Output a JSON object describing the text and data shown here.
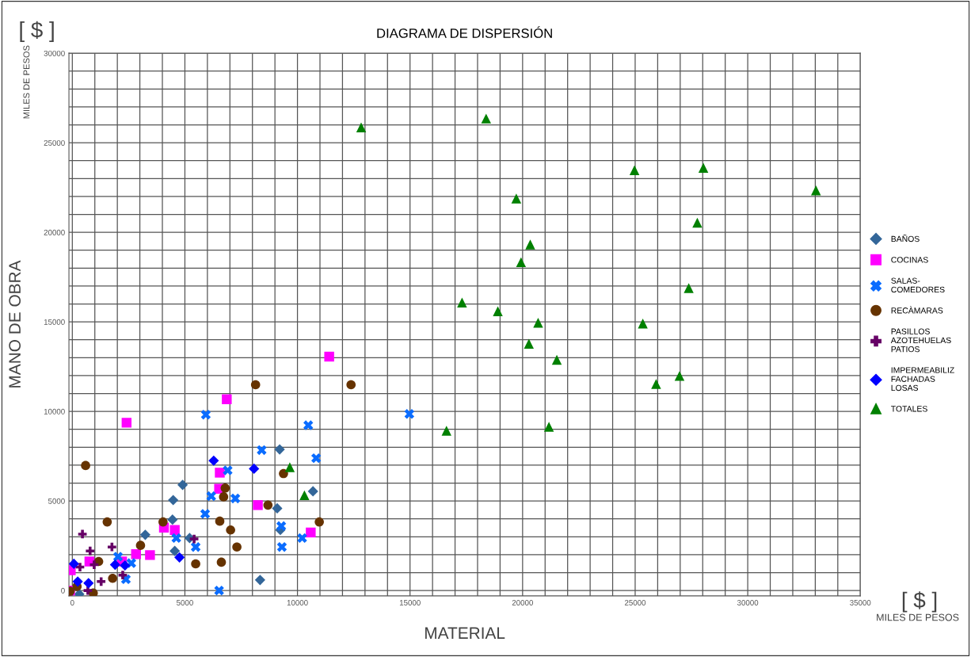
{
  "chart_data": {
    "type": "scatter",
    "title": "DIAGRAMA DE DISPERSIÓN",
    "xlabel": "MATERIAL",
    "ylabel": "MANO DE OBRA",
    "annotations": [
      "[ $ ]",
      "MILES DE PESOS",
      "[ $ ]",
      "MILES DE PESOS"
    ],
    "xlim": [
      -150,
      35000
    ],
    "ylim": [
      -300,
      30000
    ],
    "xticks": [
      0,
      {
        "value": 1000,
        "label": null
      },
      {
        "value": 2000,
        "label": null
      },
      {
        "value": 3000,
        "label": null
      },
      {
        "value": 4000,
        "label": null
      },
      5000,
      {
        "value": 6000,
        "label": null
      },
      {
        "value": 7000,
        "label": null
      },
      {
        "value": 8000,
        "label": null
      },
      {
        "value": 9000,
        "label": null
      },
      10000,
      {
        "value": 11000,
        "label": null
      },
      {
        "value": 12000,
        "label": null
      },
      {
        "value": 13000,
        "label": null
      },
      {
        "value": 14000,
        "label": null
      },
      15000,
      {
        "value": 16000,
        "label": null
      },
      {
        "value": 17000,
        "label": null
      },
      {
        "value": 18000,
        "label": null
      },
      {
        "value": 19000,
        "label": null
      },
      20000,
      {
        "value": 21000,
        "label": null
      },
      {
        "value": 22000,
        "label": null
      },
      {
        "value": 23000,
        "label": null
      },
      {
        "value": 24000,
        "label": null
      },
      25000,
      {
        "value": 26000,
        "label": null
      },
      {
        "value": 27000,
        "label": null
      },
      {
        "value": 28000,
        "label": null
      },
      {
        "value": 29000,
        "label": null
      },
      30000,
      {
        "value": 31000,
        "label": null
      },
      {
        "value": 32000,
        "label": null
      },
      {
        "value": 33000,
        "label": null
      },
      {
        "value": 34000,
        "label": null
      },
      35000
    ],
    "yticks": [
      0,
      {
        "value": 1000,
        "label": null
      },
      {
        "value": 2000,
        "label": null
      },
      {
        "value": 3000,
        "label": null
      },
      {
        "value": 4000,
        "label": null
      },
      5000,
      {
        "value": 6000,
        "label": null
      },
      {
        "value": 7000,
        "label": null
      },
      {
        "value": 8000,
        "label": null
      },
      {
        "value": 9000,
        "label": null
      },
      10000,
      {
        "value": 11000,
        "label": null
      },
      {
        "value": 12000,
        "label": null
      },
      {
        "value": 13000,
        "label": null
      },
      {
        "value": 14000,
        "label": null
      },
      15000,
      {
        "value": 16000,
        "label": null
      },
      {
        "value": 17000,
        "label": null
      },
      {
        "value": 18000,
        "label": null
      },
      {
        "value": 19000,
        "label": null
      },
      20000,
      {
        "value": 21000,
        "label": null
      },
      {
        "value": 22000,
        "label": null
      },
      {
        "value": 23000,
        "label": null
      },
      {
        "value": 24000,
        "label": null
      },
      25000,
      {
        "value": 26000,
        "label": null
      },
      {
        "value": 27000,
        "label": null
      },
      {
        "value": 28000,
        "label": null
      },
      {
        "value": 29000,
        "label": null
      },
      30000
    ],
    "grid": true,
    "legend": "right",
    "series": [
      {
        "name": "BAÑOS",
        "color": "#336699",
        "marker": "diamond",
        "x": [
          4900,
          4480,
          4450,
          3240,
          5210,
          4550,
          620,
          310,
          1690,
          6210,
          8100,
          9210,
          10690,
          9100,
          9240,
          8340
        ],
        "values": [
          5900,
          5050,
          3960,
          3110,
          2930,
          2210,
          null,
          -200,
          null,
          null,
          null,
          7880,
          5540,
          4590,
          3380,
          590
        ]
      },
      {
        "name": "COCINAS",
        "color": "#ff00ff",
        "marker": "square",
        "x": [
          11410,
          6860,
          2410,
          6550,
          6520,
          8240,
          10590,
          4070,
          4550,
          3450,
          2830,
          2210,
          760,
          -70,
          -100
        ],
        "values": [
          13060,
          10680,
          9370,
          6580,
          5680,
          4770,
          3240,
          3510,
          3380,
          1980,
          2030,
          1620,
          1620,
          1130,
          0
        ]
      },
      {
        "name": "SALAS-\nCOMEDORES",
        "color": "#0a6cff",
        "marker": "cross",
        "x": [
          5930,
          6170,
          5900,
          4620,
          5480,
          2620,
          2030,
          2380,
          10480,
          8410,
          10830,
          6900,
          7240,
          9280,
          10210,
          9310,
          6520,
          14970
        ],
        "values": [
          9820,
          5270,
          4280,
          2930,
          2430,
          1530,
          1890,
          630,
          9230,
          7840,
          7390,
          6710,
          5140,
          3600,
          2930,
          2430,
          0,
          9860
        ]
      },
      {
        "name": "RECÀMARAS",
        "color": "#663300",
        "marker": "circle",
        "x": [
          590,
          1550,
          3030,
          1170,
          1790,
          5480,
          210,
          930,
          -100,
          4030,
          8140,
          12380,
          9380,
          6790,
          6720,
          8690,
          6550,
          7030,
          7310,
          6620,
          10970
        ],
        "values": [
          6980,
          3830,
          2520,
          1620,
          680,
          1490,
          230,
          -140,
          -40,
          3830,
          11490,
          11490,
          6530,
          5720,
          5230,
          4770,
          3870,
          3380,
          2430,
          1580,
          3830
        ]
      },
      {
        "name": "PASILLOS\nAZOTEHUELAS\nPATIOS",
        "color": "#660066",
        "marker": "plus",
        "x": [
          450,
          790,
          1760,
          340,
          970,
          2240,
          1280,
          690,
          5410
        ],
        "values": [
          3150,
          2210,
          2430,
          1310,
          1440,
          860,
          500,
          0,
          2880
        ]
      },
      {
        "name": "IMPERMEABILIZ\nFACHADAS\nLOSAS",
        "color": "#0000ff",
        "marker": "diamond",
        "x": [
          70,
          1900,
          2340,
          240,
          720,
          4760,
          6280,
          8070
        ],
        "values": [
          1490,
          1440,
          1400,
          500,
          410,
          1850,
          7250,
          6800
        ]
      },
      {
        "name": "TOTALES",
        "color": "#008000",
        "marker": "triangle",
        "x": [
          12830,
          18380,
          24970,
          28030,
          33030,
          19720,
          27760,
          20340,
          19930,
          17310,
          27380,
          18900,
          20690,
          25340,
          20280,
          21520,
          25930,
          26970,
          16620,
          21170,
          9660,
          10310
        ],
        "values": [
          25860,
          26350,
          23470,
          23600,
          22340,
          21890,
          20540,
          19320,
          18330,
          16080,
          16890,
          15590,
          14950,
          14910,
          13780,
          12880,
          11530,
          11980,
          8920,
          9140,
          6890,
          5320
        ]
      }
    ]
  }
}
